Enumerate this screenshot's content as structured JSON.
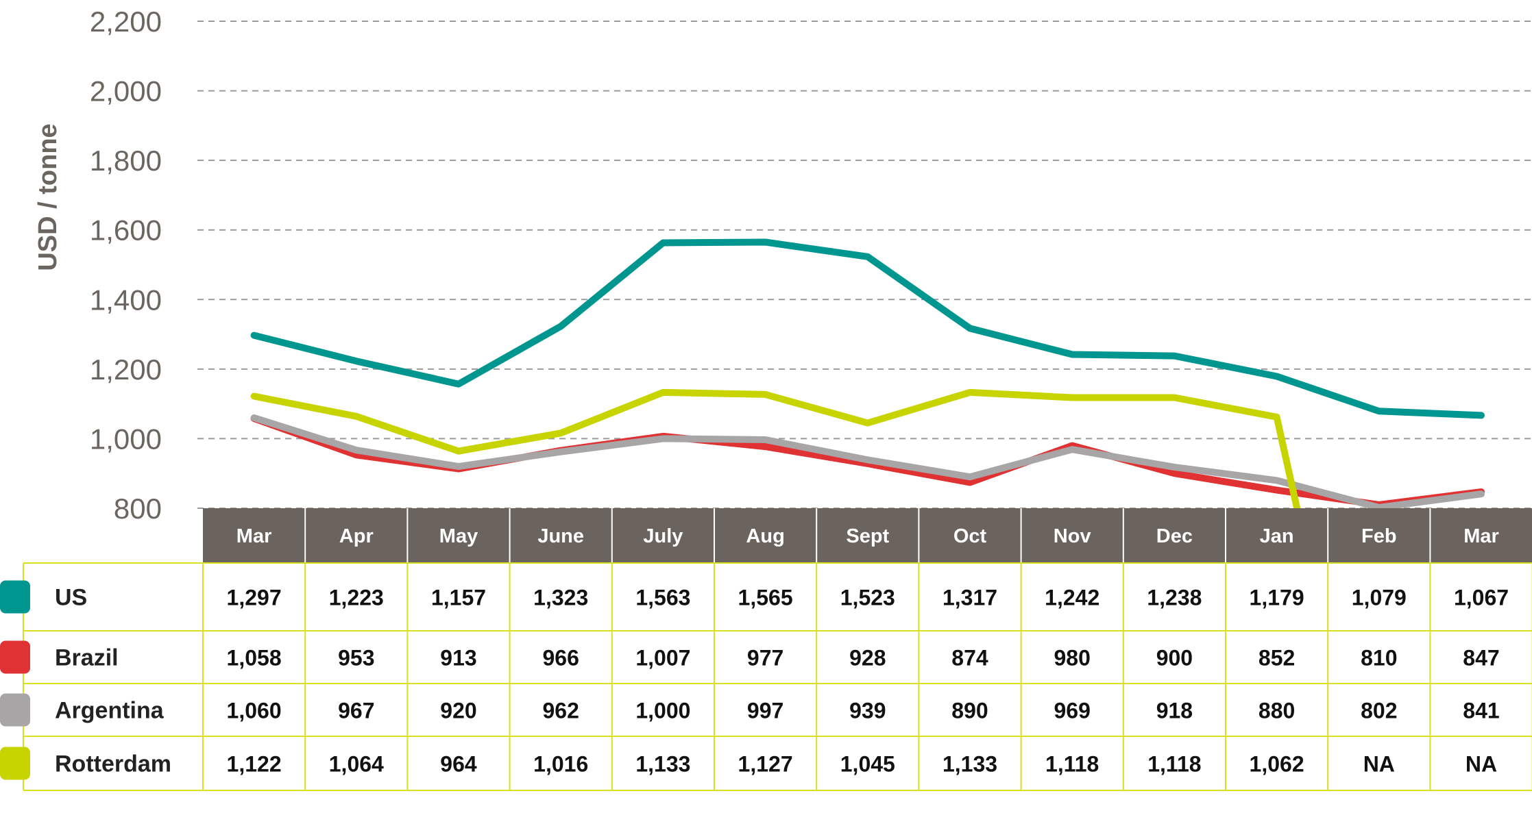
{
  "chart_data": {
    "type": "line",
    "ylabel": "USD / tonne",
    "ylim": [
      800,
      2200
    ],
    "yticks": [
      800,
      1000,
      1200,
      1400,
      1600,
      1800,
      2000,
      2200
    ],
    "ytick_labels": [
      "800",
      "1,000",
      "1,200",
      "1,400",
      "1,600",
      "1,800",
      "2,000",
      "2,200"
    ],
    "grid": "horizontal dashed",
    "categories": [
      "Mar",
      "Apr",
      "May",
      "June",
      "July",
      "Aug",
      "Sept",
      "Oct",
      "Nov",
      "Dec",
      "Jan",
      "Feb",
      "Mar"
    ],
    "series": [
      {
        "name": "US",
        "color": "#009690",
        "values": [
          1297,
          1223,
          1157,
          1323,
          1563,
          1565,
          1523,
          1317,
          1242,
          1238,
          1179,
          1079,
          1067
        ],
        "labels": [
          "1,297",
          "1,223",
          "1,157",
          "1,323",
          "1,563",
          "1,565",
          "1,523",
          "1,317",
          "1,242",
          "1,238",
          "1,179",
          "1,079",
          "1,067"
        ]
      },
      {
        "name": "Brazil",
        "color": "#e03133",
        "values": [
          1058,
          953,
          913,
          966,
          1007,
          977,
          928,
          874,
          980,
          900,
          852,
          810,
          847
        ],
        "labels": [
          "1,058",
          "953",
          "913",
          "966",
          "1,007",
          "977",
          "928",
          "874",
          "980",
          "900",
          "852",
          "810",
          "847"
        ]
      },
      {
        "name": "Argentina",
        "color": "#a7a5a6",
        "values": [
          1060,
          967,
          920,
          962,
          1000,
          997,
          939,
          890,
          969,
          918,
          880,
          802,
          841
        ],
        "labels": [
          "1,060",
          "967",
          "920",
          "962",
          "1,000",
          "997",
          "939",
          "890",
          "969",
          "918",
          "880",
          "802",
          "841"
        ]
      },
      {
        "name": "Rotterdam",
        "color": "#c8d400",
        "values": [
          1122,
          1064,
          964,
          1016,
          1133,
          1127,
          1045,
          1133,
          1118,
          1118,
          1062,
          null,
          null
        ],
        "labels": [
          "1,122",
          "1,064",
          "964",
          "1,016",
          "1,133",
          "1,127",
          "1,045",
          "1,133",
          "1,118",
          "1,118",
          "1,062",
          "NA",
          "NA"
        ],
        "drops_to_axis_after_last_value": true
      }
    ]
  },
  "colors": {
    "header_bg": "#6b635d",
    "table_border": "#d9e021",
    "grid": "#9a9a9a",
    "axis_text": "#6b6560"
  }
}
